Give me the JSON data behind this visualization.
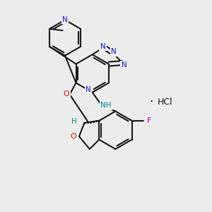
{
  "bg": "#ececec",
  "bc": "#1a1a1a",
  "nc": "#1111dd",
  "oc": "#dd1111",
  "fc": "#bb00bb",
  "nhc": "#008888",
  "lw": 1.5,
  "fs": 7.5,
  "xlim": [
    0,
    10
  ],
  "ylim": [
    0,
    10
  ]
}
